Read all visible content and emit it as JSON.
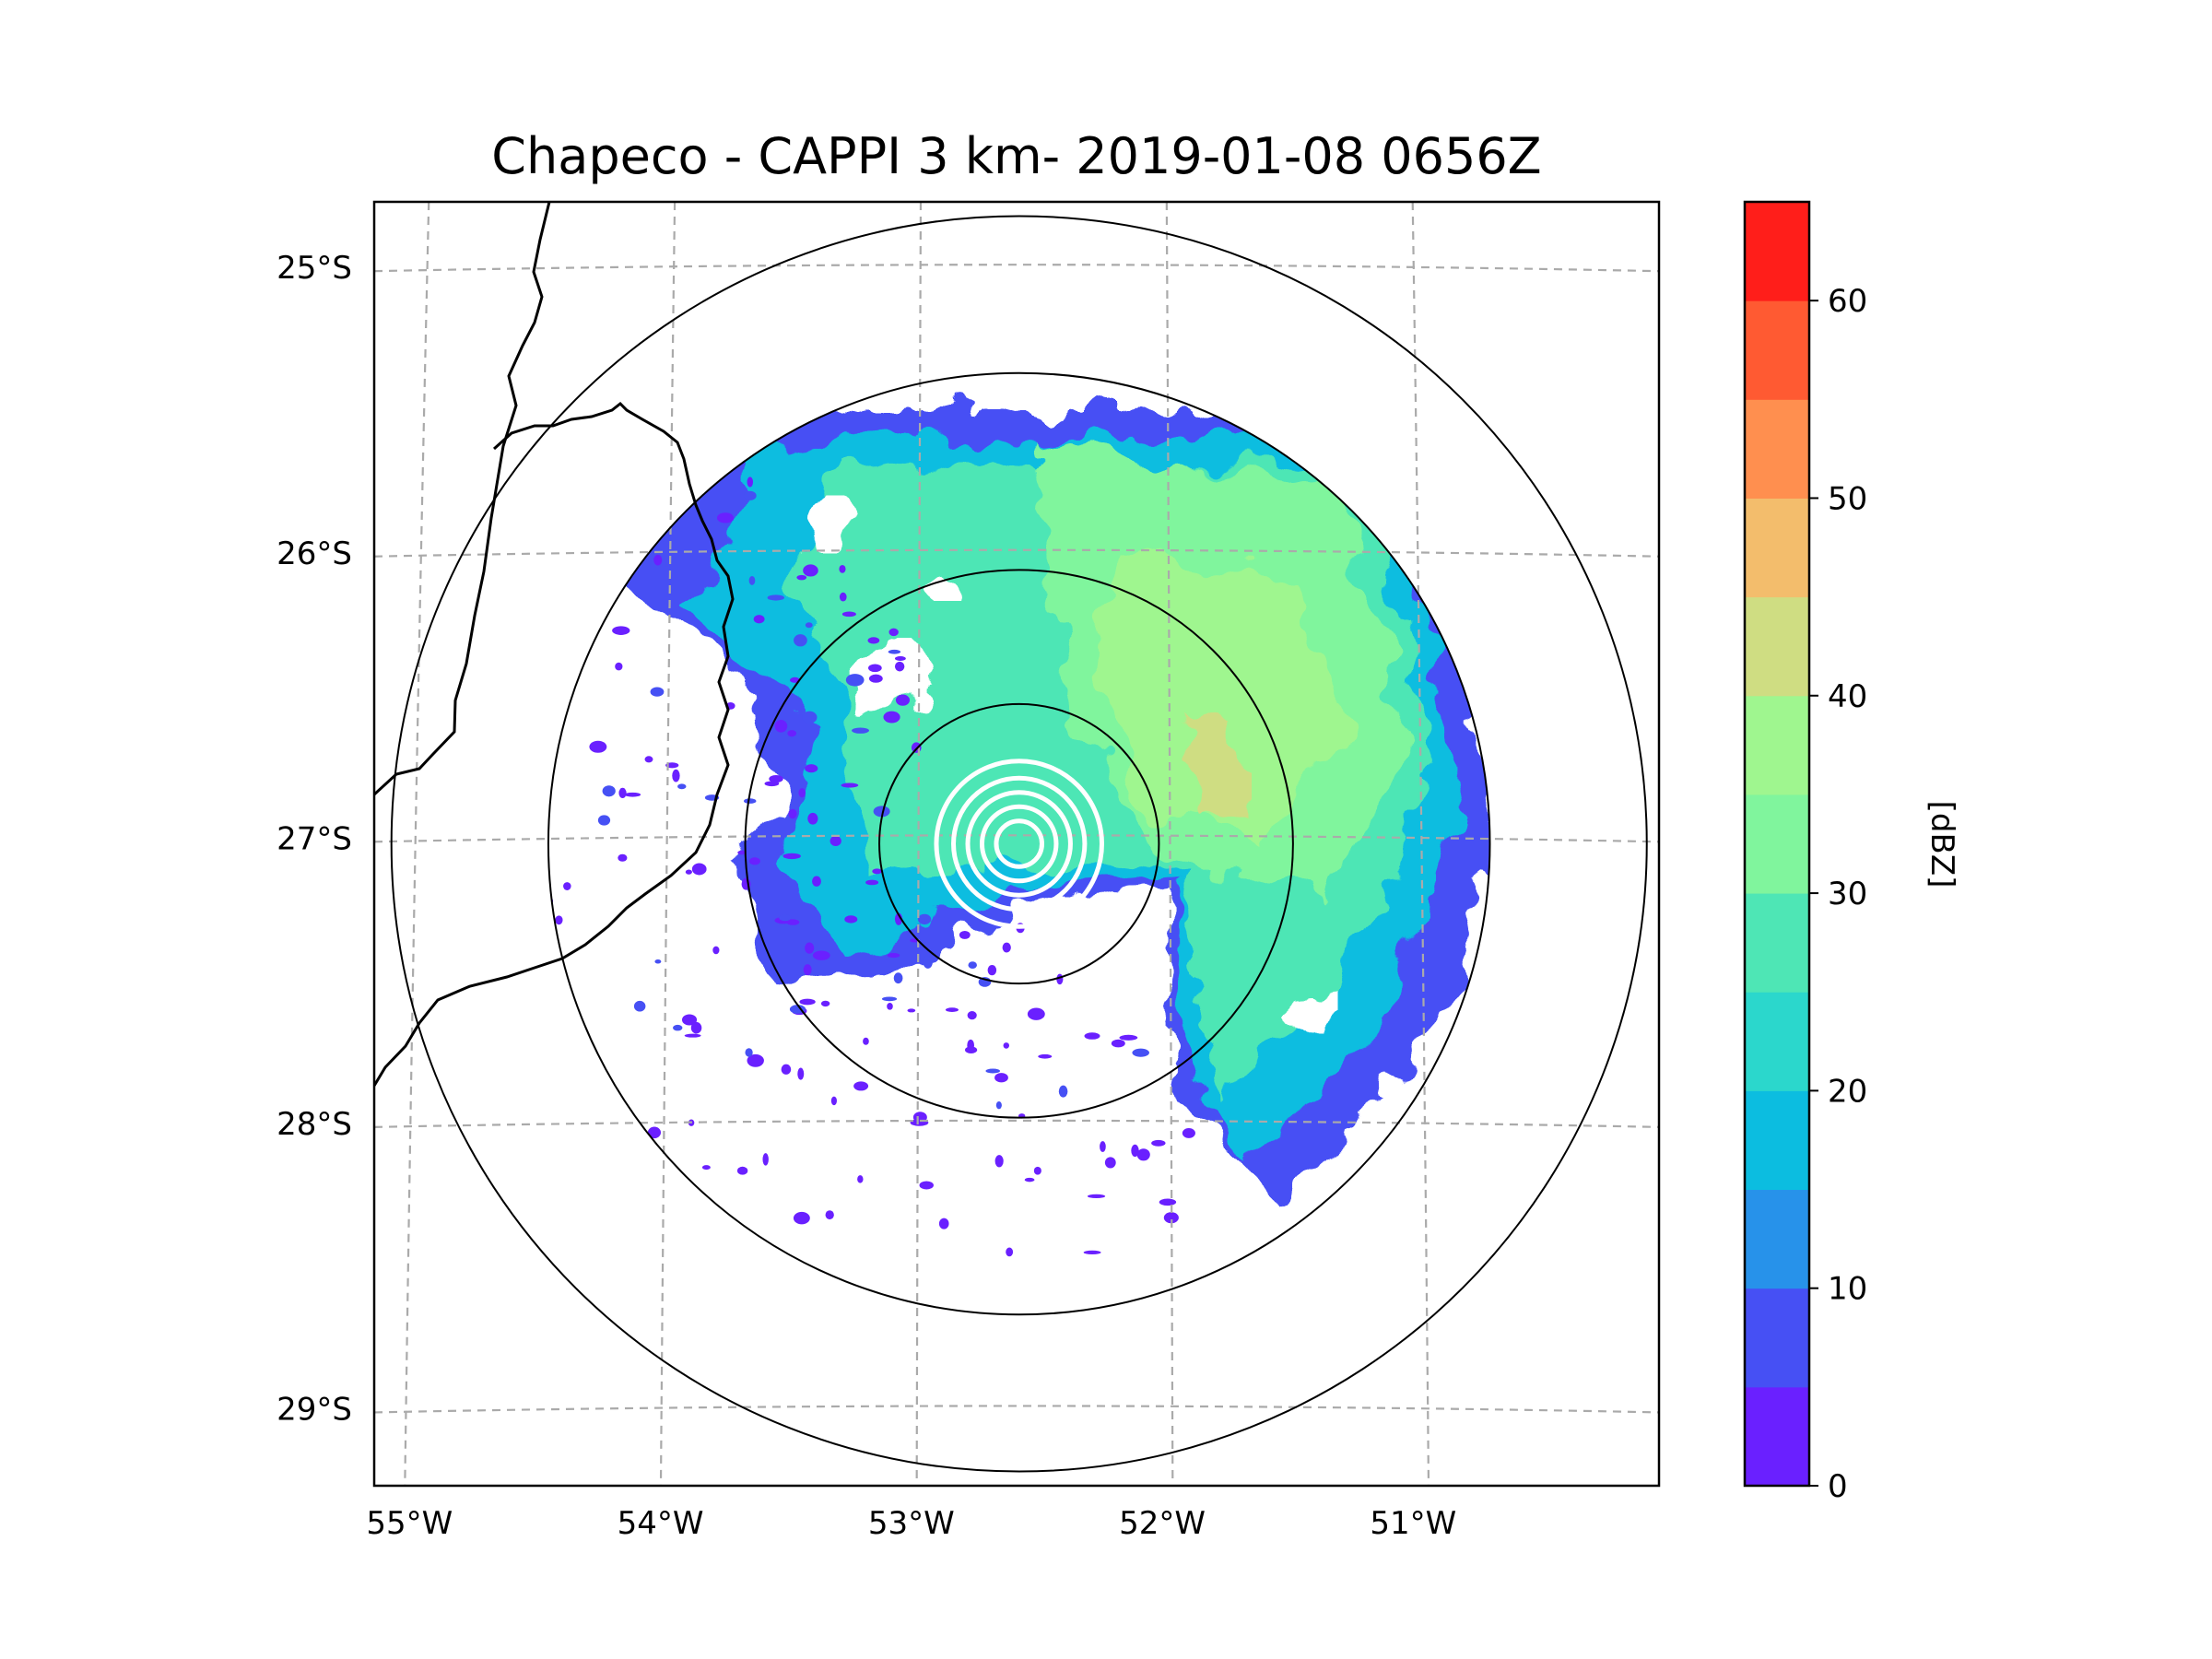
{
  "title": "Chapeco - CAPPI 3 km- 2019-01-08 0656Z",
  "map": {
    "lon_ticks": [
      {
        "value": -55,
        "label": "55°W"
      },
      {
        "value": -54,
        "label": "54°W"
      },
      {
        "value": -53,
        "label": "53°W"
      },
      {
        "value": -52,
        "label": "52°W"
      },
      {
        "value": -51,
        "label": "51°W"
      }
    ],
    "lat_ticks": [
      {
        "value": -25,
        "label": "25°S"
      },
      {
        "value": -26,
        "label": "26°S"
      },
      {
        "value": -27,
        "label": "27°S"
      },
      {
        "value": -28,
        "label": "28°S"
      },
      {
        "value": -29,
        "label": "29°S"
      }
    ],
    "extent_lon": [
      -55.17,
      -50.05
    ],
    "extent_lat": [
      -29.27,
      -24.77
    ],
    "gridlines": "on",
    "radar_center": {
      "lon": -52.6,
      "lat": -27.02
    },
    "range_rings_deg": [
      0.49,
      0.96,
      1.65,
      2.2
    ],
    "data_ring_deg": 1.65,
    "border_color": "#000000",
    "gridline_color": "#aaaaaa"
  },
  "colorbar": {
    "label": "[dBZ]",
    "range": [
      0,
      65
    ],
    "ticks": [
      {
        "value": 0,
        "label": "0"
      },
      {
        "value": 10,
        "label": "10"
      },
      {
        "value": 20,
        "label": "20"
      },
      {
        "value": 30,
        "label": "30"
      },
      {
        "value": 40,
        "label": "40"
      },
      {
        "value": 50,
        "label": "50"
      },
      {
        "value": 60,
        "label": "60"
      }
    ],
    "bins": [
      {
        "min": 0,
        "max": 5,
        "color": "#6a20ff"
      },
      {
        "min": 5,
        "max": 10,
        "color": "#4650f4"
      },
      {
        "min": 10,
        "max": 15,
        "color": "#2792ea"
      },
      {
        "min": 15,
        "max": 20,
        "color": "#0cbde0"
      },
      {
        "min": 20,
        "max": 25,
        "color": "#2bd7cc"
      },
      {
        "min": 25,
        "max": 30,
        "color": "#4ee6b5"
      },
      {
        "min": 30,
        "max": 35,
        "color": "#80f59d"
      },
      {
        "min": 35,
        "max": 40,
        "color": "#9ff68f"
      },
      {
        "min": 40,
        "max": 45,
        "color": "#cfdd82"
      },
      {
        "min": 45,
        "max": 50,
        "color": "#f3bd6c"
      },
      {
        "min": 50,
        "max": 55,
        "color": "#ff8f4f"
      },
      {
        "min": 55,
        "max": 60,
        "color": "#ff5a32"
      },
      {
        "min": 60,
        "max": 65,
        "color": "#ff1e1a"
      }
    ]
  }
}
